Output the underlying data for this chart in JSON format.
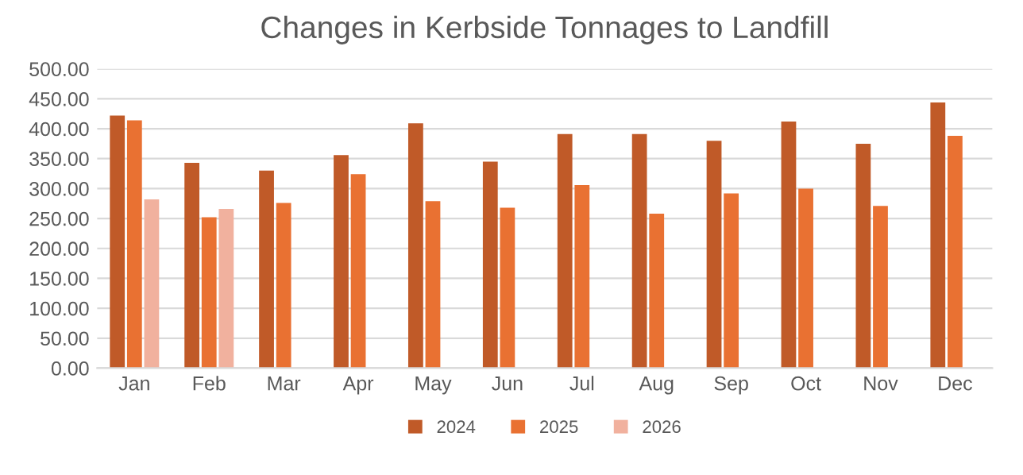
{
  "chart_data": {
    "type": "bar",
    "title": "Changes in Kerbside Tonnages to Landfill",
    "categories": [
      "Jan",
      "Feb",
      "Mar",
      "Apr",
      "May",
      "Jun",
      "Jul",
      "Aug",
      "Sep",
      "Oct",
      "Nov",
      "Dec"
    ],
    "series": [
      {
        "name": "2024",
        "color": "#c05a28",
        "values": [
          422,
          343,
          330,
          356,
          409,
          345,
          391,
          391,
          380,
          412,
          375,
          444
        ]
      },
      {
        "name": "2025",
        "color": "#e97132",
        "values": [
          414,
          252,
          276,
          324,
          279,
          268,
          306,
          258,
          292,
          300,
          271,
          388
        ]
      },
      {
        "name": "2026",
        "color": "#f1b19e",
        "values": [
          282,
          266,
          null,
          null,
          null,
          null,
          null,
          null,
          null,
          null,
          null,
          null
        ]
      }
    ],
    "ylim": [
      0,
      500
    ],
    "yticks": [
      {
        "value": 0,
        "label": "0.00"
      },
      {
        "value": 50,
        "label": "50.00"
      },
      {
        "value": 100,
        "label": "100.00"
      },
      {
        "value": 150,
        "label": "150.00"
      },
      {
        "value": 200,
        "label": "200.00"
      },
      {
        "value": 250,
        "label": "250.00"
      },
      {
        "value": 300,
        "label": "300.00"
      },
      {
        "value": 350,
        "label": "350.00"
      },
      {
        "value": 400,
        "label": "400.00"
      },
      {
        "value": 450,
        "label": "450.00"
      },
      {
        "value": 500,
        "label": "500.00"
      }
    ],
    "grid": "y",
    "legend": "bottom"
  }
}
